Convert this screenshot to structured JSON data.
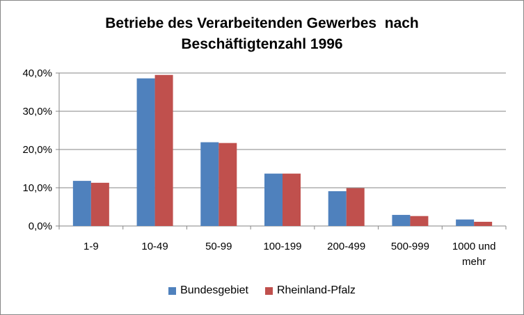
{
  "colors": {
    "bundesgebiet": "#4F81BD",
    "rheinland_pfalz": "#C0504D",
    "gridline": "#868686"
  },
  "chart_data": {
    "type": "bar",
    "title": "Betriebe des Verarbeitenden Gewerbes  nach Beschäftigtenzahl 1996",
    "title_lines": [
      "Betriebe des Verarbeitenden Gewerbes  nach",
      "Beschäftigtenzahl 1996"
    ],
    "categories": [
      "1-9",
      "10-49",
      "50-99",
      "100-199",
      "200-499",
      "500-999",
      "1000 und mehr"
    ],
    "category_lines": [
      [
        "1-9"
      ],
      [
        "10-49"
      ],
      [
        "50-99"
      ],
      [
        "100-199"
      ],
      [
        "200-499"
      ],
      [
        "500-999"
      ],
      [
        "1000 und",
        "mehr"
      ]
    ],
    "series": [
      {
        "name": "Bundesgebiet",
        "values": [
          11.8,
          38.6,
          21.9,
          13.7,
          9.1,
          2.9,
          1.7
        ]
      },
      {
        "name": "Rheinland-Pfalz",
        "values": [
          11.3,
          39.5,
          21.7,
          13.7,
          9.9,
          2.6,
          1.1
        ]
      }
    ],
    "ylim": [
      0,
      40
    ],
    "yticks": [
      0,
      10,
      20,
      30,
      40
    ],
    "ytick_labels": [
      "0,0%",
      "10,0%",
      "20,0%",
      "30,0%",
      "40,0%"
    ],
    "grid": true,
    "legend_position": "bottom"
  }
}
